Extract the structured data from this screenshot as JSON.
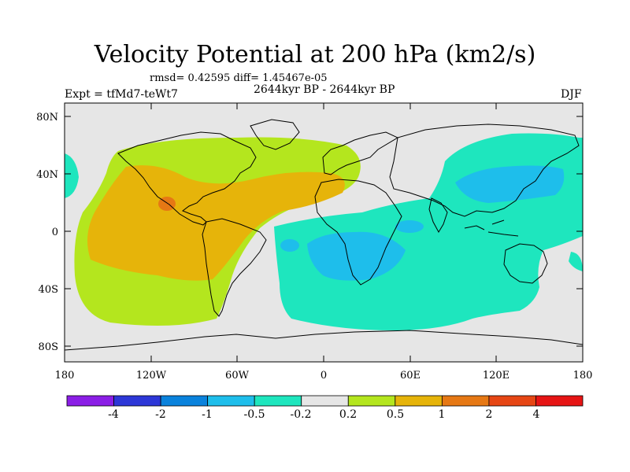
{
  "title": "Velocity Potential at 200 hPa (km2/s)",
  "stats": "rmsd= 0.42595  diff= 1.45467e-05",
  "period": "2644kyr BP - 2644kyr BP",
  "experiment": "Expt = tfMd7-teWt7",
  "season": "DJF",
  "lat_labels": [
    "80N",
    "40N",
    "0",
    "40S",
    "80S"
  ],
  "lon_labels": [
    "180",
    "120W",
    "60W",
    "0",
    "60E",
    "120E",
    "180"
  ],
  "colorbar": {
    "labels": [
      "-4",
      "-2",
      "-1",
      "-0.5",
      "-0.2",
      "0.2",
      "0.5",
      "1",
      "2",
      "4"
    ],
    "colors": [
      "#8b1ee6",
      "#2d37d7",
      "#0a82dc",
      "#1ebeeb",
      "#1ee6be",
      "#e6e6e6",
      "#b4e61e",
      "#e6b40a",
      "#e67814",
      "#e64614",
      "#e61414"
    ]
  },
  "fill_colors": {
    "land_bg": "#e6e6e6",
    "pos_light": "#b4e61e",
    "pos_mid": "#e6b40a",
    "pos_high": "#e67814",
    "neg_light": "#1ee6be",
    "neg_mid": "#1ebeeb"
  }
}
